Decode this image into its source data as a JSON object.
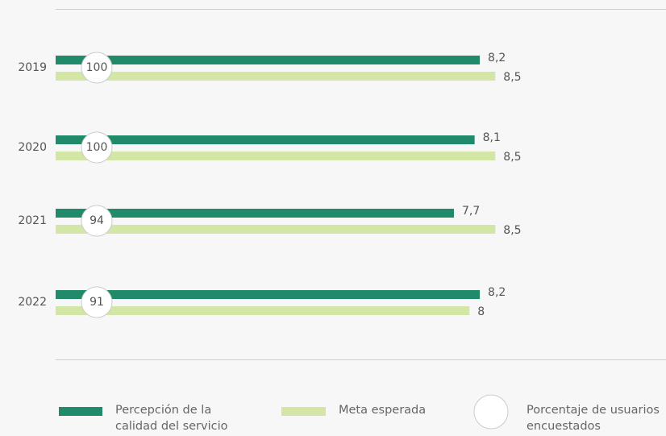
{
  "chart_data": {
    "type": "bar",
    "orientation": "horizontal",
    "categories": [
      "2019",
      "2020",
      "2021",
      "2022"
    ],
    "series": [
      {
        "name": "Percepción de la calidad del servicio",
        "color": "#218a6b",
        "values": [
          8.2,
          8.1,
          7.7,
          8.2
        ],
        "value_labels": [
          "8,2",
          "8,1",
          "7,7",
          "8,2"
        ]
      },
      {
        "name": "Meta esperada",
        "color": "#d4e6a5",
        "values": [
          8.5,
          8.5,
          8.5,
          8
        ],
        "value_labels": [
          "8,5",
          "8,5",
          "8,5",
          "8"
        ]
      }
    ],
    "survey": {
      "name": "Porcentaje de usuarios encuestados",
      "values": [
        100,
        100,
        94,
        91
      ]
    },
    "xlim": [
      0,
      11.8
    ]
  }
}
